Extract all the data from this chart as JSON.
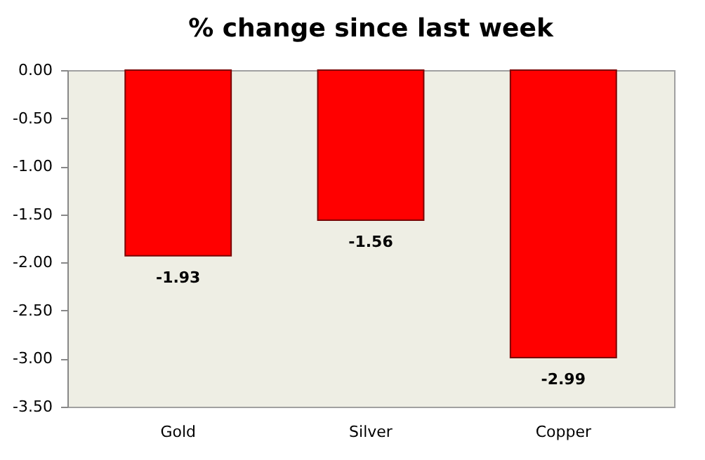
{
  "chart_data": {
    "type": "bar",
    "title": "% change since last week",
    "categories": [
      "Gold",
      "Silver",
      "Copper"
    ],
    "values": [
      -1.93,
      -1.56,
      -2.99
    ],
    "color": "#ff0000",
    "ylim": [
      -3.5,
      0
    ],
    "yticks": [
      {
        "value": 0,
        "label": "0.00"
      },
      {
        "value": -0.5,
        "label": "-0.50"
      },
      {
        "value": -1,
        "label": "-1.00"
      },
      {
        "value": -1.5,
        "label": "-1.50"
      },
      {
        "value": -2,
        "label": "-2.00"
      },
      {
        "value": -2.5,
        "label": "-2.50"
      },
      {
        "value": -3,
        "label": "-3.00"
      },
      {
        "value": -3.5,
        "label": "-3.50"
      }
    ],
    "data_labels": true,
    "grid": false
  }
}
